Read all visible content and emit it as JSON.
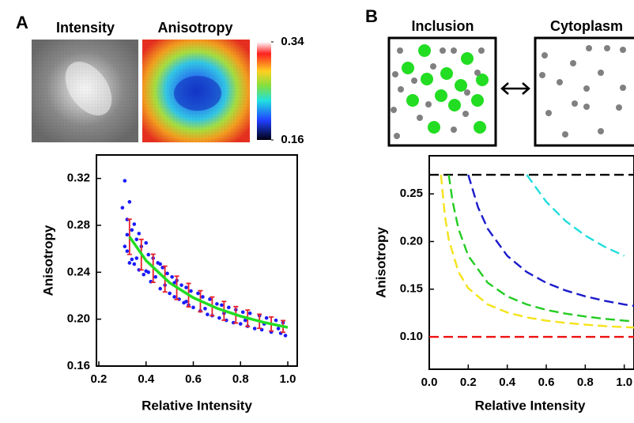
{
  "panel_labels": [
    "A",
    "B"
  ],
  "image_titles": [
    "Intensity",
    "Anisotropy"
  ],
  "diagram": {
    "labels": [
      "Inclusion",
      "Cytoplasm"
    ]
  },
  "chart_data": [
    {
      "type": "colorbar",
      "ylim": [
        0.16,
        0.34
      ],
      "yticks": [
        0.16,
        0.34
      ]
    },
    {
      "type": "scatter",
      "x_label": "Relative Intensity",
      "y_label": "Anisotropy",
      "xlim": [
        0.19,
        1.04
      ],
      "ylim": [
        0.16,
        0.34
      ],
      "xticks": [
        {
          "value": 0.2,
          "label": "0.2"
        },
        0.4,
        0.6,
        0.8,
        {
          "value": 1.0,
          "label": "1.0"
        }
      ],
      "yticks": [
        0.16,
        {
          "value": 0.2,
          "label": "0.20"
        },
        0.24,
        0.28,
        0.32
      ],
      "series": [
        {
          "style": "points",
          "color": "#1a1aff",
          "x": [
            0.3,
            0.31,
            0.31,
            0.32,
            0.32,
            0.33,
            0.33,
            0.34,
            0.34,
            0.35,
            0.35,
            0.36,
            0.37,
            0.37,
            0.38,
            0.39,
            0.4,
            0.4,
            0.41,
            0.42,
            0.43,
            0.44,
            0.45,
            0.46,
            0.47,
            0.48,
            0.49,
            0.5,
            0.51,
            0.52,
            0.53,
            0.54,
            0.55,
            0.56,
            0.57,
            0.58,
            0.59,
            0.6,
            0.62,
            0.63,
            0.64,
            0.66,
            0.67,
            0.68,
            0.7,
            0.71,
            0.72,
            0.74,
            0.75,
            0.77,
            0.78,
            0.8,
            0.81,
            0.83,
            0.84,
            0.86,
            0.88,
            0.89,
            0.91,
            0.93,
            0.95,
            0.97,
            0.98,
            0.99,
            0.32,
            0.36,
            0.41,
            0.46,
            0.52,
            0.57,
            0.65,
            0.73,
            0.82,
            0.9,
            0.96
          ],
          "values": [
            0.295,
            0.318,
            0.262,
            0.285,
            0.258,
            0.3,
            0.248,
            0.276,
            0.251,
            0.281,
            0.247,
            0.268,
            0.242,
            0.273,
            0.262,
            0.238,
            0.265,
            0.241,
            0.255,
            0.232,
            0.252,
            0.236,
            0.248,
            0.226,
            0.244,
            0.229,
            0.239,
            0.222,
            0.236,
            0.219,
            0.233,
            0.217,
            0.229,
            0.214,
            0.227,
            0.212,
            0.224,
            0.21,
            0.222,
            0.207,
            0.219,
            0.204,
            0.217,
            0.203,
            0.213,
            0.201,
            0.212,
            0.199,
            0.21,
            0.197,
            0.208,
            0.196,
            0.206,
            0.194,
            0.205,
            0.192,
            0.203,
            0.191,
            0.201,
            0.189,
            0.199,
            0.188,
            0.197,
            0.186,
            0.272,
            0.252,
            0.24,
            0.247,
            0.231,
            0.215,
            0.209,
            0.205,
            0.199,
            0.196,
            0.192
          ]
        },
        {
          "style": "errorbar",
          "color": "#e8202a",
          "x": [
            0.33,
            0.38,
            0.43,
            0.48,
            0.53,
            0.58,
            0.63,
            0.68,
            0.73,
            0.78,
            0.83,
            0.88,
            0.93,
            0.98
          ],
          "values": [
            0.2702,
            0.255,
            0.2434,
            0.2342,
            0.2267,
            0.2205,
            0.2153,
            0.2109,
            0.2071,
            0.2037,
            0.2008,
            0.1982,
            0.1959,
            0.1938
          ],
          "errors": [
            0.015,
            0.013,
            0.012,
            0.011,
            0.01,
            0.01,
            0.009,
            0.008,
            0.008,
            0.007,
            0.007,
            0.006,
            0.006,
            0.005
          ]
        },
        {
          "style": "line",
          "color": "#22dd22",
          "x": [
            0.33,
            0.4,
            0.5,
            0.6,
            0.7,
            0.8,
            0.9,
            1.0
          ],
          "values": [
            0.2702,
            0.25,
            0.231,
            0.2183,
            0.2093,
            0.2025,
            0.1972,
            0.193
          ]
        }
      ]
    },
    {
      "type": "line",
      "x_label": "Relative Intensity",
      "y_label": "Anisotropy",
      "dashed": true,
      "xlim": [
        0,
        1.05
      ],
      "ylim": [
        0.066,
        0.29
      ],
      "xticks": [
        {
          "value": 0,
          "label": "0.0"
        },
        0.2,
        0.4,
        0.6,
        0.8,
        {
          "value": 1.0,
          "label": "1.0"
        }
      ],
      "yticks": [
        {
          "value": 0.1,
          "label": "0.10"
        },
        0.15,
        {
          "value": 0.2,
          "label": "0.20"
        },
        0.25
      ],
      "series": [
        {
          "color": "#000000",
          "x": [
            0,
            1.05
          ],
          "values": [
            0.27,
            0.27
          ]
        },
        {
          "color": "#ee1111",
          "x": [
            0,
            1.05
          ],
          "values": [
            0.1,
            0.1
          ]
        },
        {
          "color": "#f5e31a",
          "x": [
            0.06,
            0.08,
            0.1,
            0.15,
            0.2,
            0.3,
            0.4,
            0.5,
            0.6,
            0.7,
            0.8,
            0.9,
            1.0,
            1.05
          ],
          "values": [
            0.27,
            0.2275,
            0.202,
            0.168,
            0.151,
            0.134,
            0.1255,
            0.1204,
            0.117,
            0.1146,
            0.1128,
            0.1113,
            0.1102,
            0.1097
          ]
        },
        {
          "color": "#22cc22",
          "x": [
            0.1,
            0.12,
            0.15,
            0.2,
            0.3,
            0.4,
            0.5,
            0.6,
            0.7,
            0.8,
            0.9,
            1.0,
            1.05
          ],
          "values": [
            0.27,
            0.2417,
            0.2133,
            0.185,
            0.1567,
            0.1425,
            0.134,
            0.1283,
            0.1243,
            0.1213,
            0.1189,
            0.117,
            0.1162
          ]
        },
        {
          "color": "#1a1acc",
          "x": [
            0.2,
            0.25,
            0.3,
            0.4,
            0.5,
            0.6,
            0.7,
            0.8,
            0.9,
            1.0,
            1.05
          ],
          "values": [
            0.27,
            0.236,
            0.2133,
            0.185,
            0.168,
            0.1567,
            0.1486,
            0.1425,
            0.1378,
            0.134,
            0.1324
          ]
        },
        {
          "color": "#22dddd",
          "x": [
            0.5,
            0.6,
            0.7,
            0.8,
            0.9,
            1.0
          ],
          "values": [
            0.27,
            0.2417,
            0.2214,
            0.2063,
            0.1944,
            0.185
          ]
        }
      ]
    }
  ]
}
